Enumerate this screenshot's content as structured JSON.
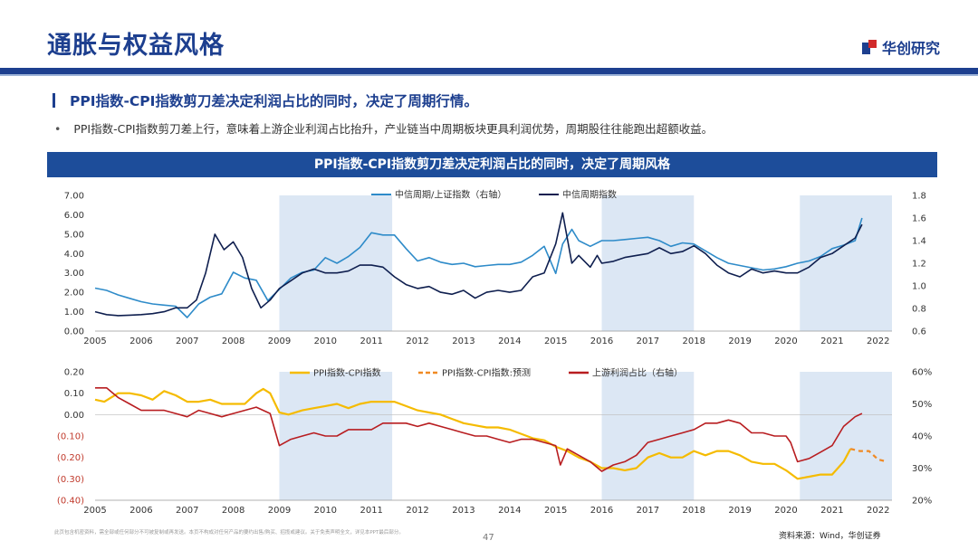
{
  "page": {
    "title": "通胀与权益风格",
    "logo": "华创研究",
    "heading": "PPI指数-CPI指数剪刀差决定利润占比的同时，决定了周期行情。",
    "bullet": "PPI指数-CPI指数剪刀差上行，意味着上游企业利润占比抬升，产业链当中周期板块更具利润优势，周期股往往能跑出超额收益。",
    "banner": "PPI指数-CPI指数剪刀差决定利润占比的同时，决定了周期风格",
    "footnote": "此页包含机密资料，需全部或任何部分不可被复制或再发送。本页不构成对任何产品的要约出售/购买、招揽或建议。关于免责声明全文，详见本PPT最后部分。",
    "page_number": "47",
    "source": "资料来源：Wind，华创证券"
  },
  "colors": {
    "brand": "#1d3f8f",
    "banner": "#1d4d9a",
    "shade": "#dce7f4",
    "light_blue": "#2e8bc9",
    "dark_navy": "#0f1f4f",
    "yellow": "#f5bb00",
    "orange": "#f08a24",
    "red": "#b81d20"
  },
  "chart_data": [
    {
      "type": "line",
      "title": "",
      "x_ticks": [
        "2005",
        "2006",
        "2007",
        "2008",
        "2009",
        "2010",
        "2011",
        "2012",
        "2013",
        "2014",
        "2015",
        "2016",
        "2017",
        "2018",
        "2019",
        "2020",
        "2021",
        "2022"
      ],
      "xlim": [
        2005,
        2022.3
      ],
      "y_left": {
        "lim": [
          0,
          7
        ],
        "ticks": [
          "0.00",
          "1.00",
          "2.00",
          "3.00",
          "4.00",
          "5.00",
          "6.00",
          "7.00"
        ]
      },
      "y_right": {
        "lim": [
          0.6,
          1.8
        ],
        "ticks": [
          "0.6",
          "0.8",
          "1.0",
          "1.2",
          "1.4",
          "1.6",
          "1.8"
        ]
      },
      "shaded_periods": [
        [
          2009.0,
          2011.45
        ],
        [
          2016.0,
          2018.0
        ],
        [
          2020.3,
          2022.3
        ]
      ],
      "series": [
        {
          "name": "中信周期/上证指数（右轴）",
          "axis": "right",
          "color": "#2e8bc9",
          "x": [
            2005.0,
            2005.25,
            2005.5,
            2005.75,
            2006.0,
            2006.25,
            2006.5,
            2006.75,
            2007.0,
            2007.25,
            2007.5,
            2007.75,
            2008.0,
            2008.25,
            2008.5,
            2008.75,
            2009.0,
            2009.25,
            2009.5,
            2009.75,
            2010.0,
            2010.25,
            2010.5,
            2010.75,
            2011.0,
            2011.25,
            2011.5,
            2011.75,
            2012.0,
            2012.25,
            2012.5,
            2012.75,
            2013.0,
            2013.25,
            2013.5,
            2013.75,
            2014.0,
            2014.25,
            2014.5,
            2014.75,
            2015.0,
            2015.15,
            2015.35,
            2015.5,
            2015.75,
            2016.0,
            2016.25,
            2016.5,
            2016.75,
            2017.0,
            2017.25,
            2017.5,
            2017.75,
            2018.0,
            2018.25,
            2018.5,
            2018.75,
            2019.0,
            2019.25,
            2019.5,
            2019.75,
            2020.0,
            2020.25,
            2020.5,
            2020.75,
            2021.0,
            2021.25,
            2021.5,
            2021.65
          ],
          "y": [
            0.98,
            0.96,
            0.92,
            0.89,
            0.86,
            0.84,
            0.83,
            0.82,
            0.72,
            0.84,
            0.9,
            0.93,
            1.12,
            1.07,
            1.05,
            0.87,
            0.97,
            1.07,
            1.12,
            1.14,
            1.25,
            1.2,
            1.26,
            1.34,
            1.47,
            1.45,
            1.45,
            1.33,
            1.22,
            1.25,
            1.21,
            1.19,
            1.2,
            1.17,
            1.18,
            1.19,
            1.19,
            1.21,
            1.27,
            1.35,
            1.11,
            1.37,
            1.5,
            1.4,
            1.35,
            1.4,
            1.4,
            1.41,
            1.42,
            1.43,
            1.4,
            1.35,
            1.38,
            1.37,
            1.31,
            1.25,
            1.2,
            1.18,
            1.16,
            1.14,
            1.15,
            1.17,
            1.2,
            1.22,
            1.26,
            1.33,
            1.36,
            1.4,
            1.6
          ]
        },
        {
          "name": "中信周期指数",
          "axis": "left",
          "color": "#0f1f4f",
          "x": [
            2005.0,
            2005.25,
            2005.5,
            2005.75,
            2006.0,
            2006.25,
            2006.5,
            2006.75,
            2007.0,
            2007.2,
            2007.4,
            2007.6,
            2007.8,
            2008.0,
            2008.2,
            2008.4,
            2008.6,
            2008.8,
            2009.0,
            2009.25,
            2009.5,
            2009.75,
            2010.0,
            2010.25,
            2010.5,
            2010.75,
            2011.0,
            2011.25,
            2011.5,
            2011.75,
            2012.0,
            2012.25,
            2012.5,
            2012.75,
            2013.0,
            2013.25,
            2013.5,
            2013.75,
            2014.0,
            2014.25,
            2014.5,
            2014.75,
            2015.0,
            2015.15,
            2015.35,
            2015.5,
            2015.75,
            2015.9,
            2016.0,
            2016.25,
            2016.5,
            2016.75,
            2017.0,
            2017.25,
            2017.5,
            2017.75,
            2018.0,
            2018.25,
            2018.5,
            2018.75,
            2019.0,
            2019.25,
            2019.5,
            2019.75,
            2020.0,
            2020.25,
            2020.5,
            2020.75,
            2021.0,
            2021.25,
            2021.5,
            2021.65
          ],
          "y": [
            1.0,
            0.85,
            0.8,
            0.82,
            0.85,
            0.9,
            1.0,
            1.2,
            1.2,
            1.6,
            3.0,
            5.0,
            4.2,
            4.6,
            3.8,
            2.2,
            1.2,
            1.6,
            2.2,
            2.6,
            3.0,
            3.2,
            3.0,
            3.0,
            3.1,
            3.4,
            3.4,
            3.3,
            2.8,
            2.4,
            2.2,
            2.3,
            2.0,
            1.9,
            2.1,
            1.7,
            2.0,
            2.1,
            2.0,
            2.1,
            2.8,
            3.0,
            4.5,
            6.1,
            3.5,
            3.9,
            3.3,
            3.9,
            3.5,
            3.6,
            3.8,
            3.9,
            4.0,
            4.3,
            4.0,
            4.1,
            4.4,
            4.0,
            3.4,
            3.0,
            2.8,
            3.2,
            3.0,
            3.1,
            3.0,
            3.0,
            3.3,
            3.8,
            4.0,
            4.4,
            4.8,
            5.5
          ]
        }
      ]
    },
    {
      "type": "line",
      "title": "",
      "x_ticks": [
        "2005",
        "2006",
        "2007",
        "2008",
        "2009",
        "2010",
        "2011",
        "2012",
        "2013",
        "2014",
        "2015",
        "2016",
        "2017",
        "2018",
        "2019",
        "2020",
        "2021",
        "2022"
      ],
      "xlim": [
        2005,
        2022.3
      ],
      "y_left": {
        "lim": [
          -0.4,
          0.2
        ],
        "ticks": [
          "0.20",
          "0.10",
          "0.00",
          "(0.10)",
          "(0.20)",
          "(0.30)",
          "(0.40)"
        ]
      },
      "y_right": {
        "lim": [
          0.2,
          0.6
        ],
        "ticks": [
          "60%",
          "50%",
          "40%",
          "30%",
          "20%"
        ]
      },
      "shaded_periods": [
        [
          2009.0,
          2011.45
        ],
        [
          2016.0,
          2018.0
        ],
        [
          2020.3,
          2022.3
        ]
      ],
      "series": [
        {
          "name": "PPI指数-CPI指数",
          "axis": "left",
          "style": "solid",
          "color": "#f5bb00",
          "x": [
            2005.0,
            2005.2,
            2005.5,
            2005.75,
            2006.0,
            2006.25,
            2006.5,
            2006.75,
            2007.0,
            2007.25,
            2007.5,
            2007.75,
            2008.0,
            2008.25,
            2008.5,
            2008.65,
            2008.8,
            2009.0,
            2009.2,
            2009.5,
            2009.75,
            2010.0,
            2010.25,
            2010.5,
            2010.75,
            2011.0,
            2011.25,
            2011.5,
            2011.75,
            2012.0,
            2012.25,
            2012.5,
            2012.75,
            2013.0,
            2013.25,
            2013.5,
            2013.75,
            2014.0,
            2014.25,
            2014.5,
            2014.75,
            2015.0,
            2015.25,
            2015.5,
            2015.75,
            2016.0,
            2016.25,
            2016.5,
            2016.75,
            2017.0,
            2017.25,
            2017.5,
            2017.75,
            2018.0,
            2018.25,
            2018.5,
            2018.75,
            2019.0,
            2019.25,
            2019.5,
            2019.75,
            2020.0,
            2020.25,
            2020.5,
            2020.75,
            2021.0,
            2021.25,
            2021.4
          ],
          "y": [
            0.07,
            0.06,
            0.1,
            0.1,
            0.09,
            0.07,
            0.11,
            0.09,
            0.06,
            0.06,
            0.07,
            0.05,
            0.05,
            0.05,
            0.1,
            0.12,
            0.1,
            0.01,
            0.0,
            0.02,
            0.03,
            0.04,
            0.05,
            0.03,
            0.05,
            0.06,
            0.06,
            0.06,
            0.04,
            0.02,
            0.01,
            0.0,
            -0.02,
            -0.04,
            -0.05,
            -0.06,
            -0.06,
            -0.07,
            -0.09,
            -0.11,
            -0.12,
            -0.15,
            -0.17,
            -0.2,
            -0.22,
            -0.25,
            -0.25,
            -0.26,
            -0.25,
            -0.2,
            -0.18,
            -0.2,
            -0.2,
            -0.17,
            -0.19,
            -0.17,
            -0.17,
            -0.19,
            -0.22,
            -0.23,
            -0.23,
            -0.26,
            -0.3,
            -0.29,
            -0.28,
            -0.28,
            -0.22,
            -0.16
          ]
        },
        {
          "name": "PPI指数-CPI指数:预测",
          "axis": "left",
          "style": "dashed",
          "color": "#f08a24",
          "x": [
            2021.4,
            2021.6,
            2021.8,
            2022.0,
            2022.2
          ],
          "y": [
            -0.16,
            -0.17,
            -0.17,
            -0.21,
            -0.22
          ]
        },
        {
          "name": "上游利润占比（右轴）",
          "axis": "right",
          "style": "solid",
          "color": "#b81d20",
          "x": [
            2005.0,
            2005.25,
            2005.5,
            2005.75,
            2006.0,
            2006.25,
            2006.5,
            2006.75,
            2007.0,
            2007.25,
            2007.5,
            2007.75,
            2008.0,
            2008.25,
            2008.5,
            2008.8,
            2009.0,
            2009.25,
            2009.5,
            2009.75,
            2010.0,
            2010.25,
            2010.5,
            2010.75,
            2011.0,
            2011.25,
            2011.5,
            2011.75,
            2012.0,
            2012.25,
            2012.5,
            2012.75,
            2013.0,
            2013.25,
            2013.5,
            2013.75,
            2014.0,
            2014.25,
            2014.5,
            2014.75,
            2015.0,
            2015.1,
            2015.25,
            2015.5,
            2015.75,
            2016.0,
            2016.25,
            2016.5,
            2016.75,
            2017.0,
            2017.25,
            2017.5,
            2017.75,
            2018.0,
            2018.25,
            2018.5,
            2018.75,
            2019.0,
            2019.25,
            2019.5,
            2019.75,
            2020.0,
            2020.1,
            2020.25,
            2020.5,
            2020.75,
            2021.0,
            2021.25,
            2021.5,
            2021.65
          ],
          "y": [
            0.55,
            0.55,
            0.52,
            0.5,
            0.48,
            0.48,
            0.48,
            0.47,
            0.46,
            0.48,
            0.47,
            0.46,
            0.47,
            0.48,
            0.49,
            0.47,
            0.37,
            0.39,
            0.4,
            0.41,
            0.4,
            0.4,
            0.42,
            0.42,
            0.42,
            0.44,
            0.44,
            0.44,
            0.43,
            0.44,
            0.43,
            0.42,
            0.41,
            0.4,
            0.4,
            0.39,
            0.38,
            0.39,
            0.39,
            0.38,
            0.37,
            0.31,
            0.36,
            0.34,
            0.32,
            0.29,
            0.31,
            0.32,
            0.34,
            0.38,
            0.39,
            0.4,
            0.41,
            0.42,
            0.44,
            0.44,
            0.45,
            0.44,
            0.41,
            0.41,
            0.4,
            0.4,
            0.38,
            0.32,
            0.33,
            0.35,
            0.37,
            0.43,
            0.46,
            0.47
          ]
        }
      ]
    }
  ]
}
